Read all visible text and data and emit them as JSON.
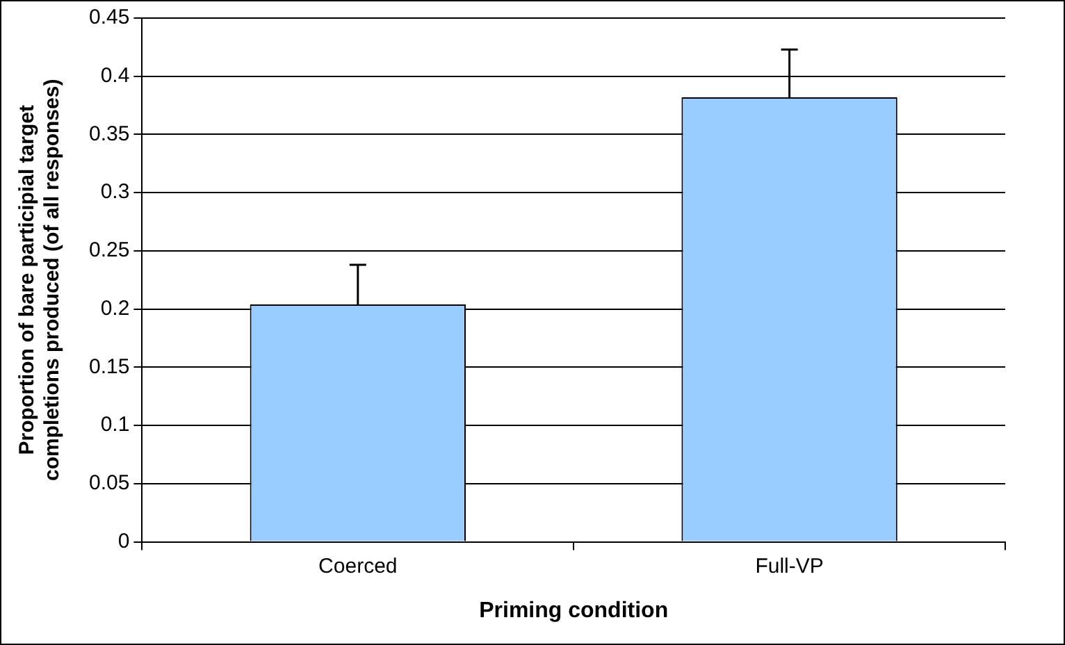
{
  "chart_data": {
    "type": "bar",
    "xlabel": "Priming condition",
    "ylabel": "Proportion of bare participial target completions produced (of all responses)",
    "categories": [
      "Coerced",
      "Full-VP"
    ],
    "values": [
      0.204,
      0.382
    ],
    "errors": [
      [
        0.204,
        0.238
      ],
      [
        0.382,
        0.423
      ]
    ],
    "color": "#99ccff",
    "ylim": [
      0,
      0.45
    ],
    "yticks": [
      0,
      0.05,
      0.1,
      0.15,
      0.2,
      0.25,
      0.3,
      0.35,
      0.4,
      0.45
    ],
    "grid": "y",
    "legend": false
  }
}
